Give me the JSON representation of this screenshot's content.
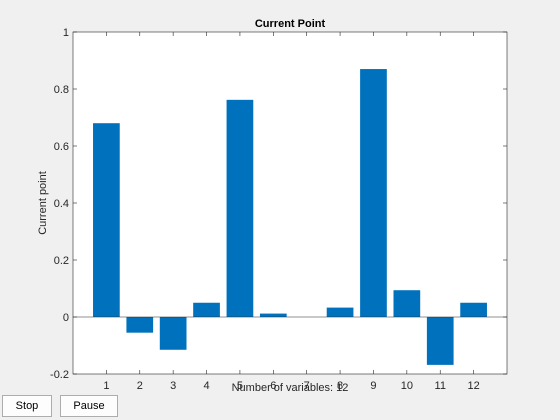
{
  "colors": {
    "bar": "#0072bd",
    "axes_bg": "#ffffff",
    "figure_bg": "#f0f0f0",
    "axis": "#262626"
  },
  "controls": {
    "stop_label": "Stop",
    "pause_label": "Pause"
  },
  "chart_data": {
    "type": "bar",
    "title": "Current Point",
    "xlabel": "Number of variables: 12",
    "ylabel": "Current point",
    "categories": [
      "1",
      "2",
      "3",
      "4",
      "5",
      "6",
      "7",
      "8",
      "9",
      "10",
      "11",
      "12"
    ],
    "values": [
      0.68,
      -0.055,
      -0.115,
      0.05,
      0.762,
      0.012,
      0.0,
      0.033,
      0.87,
      0.094,
      -0.168,
      0.05
    ],
    "ylim": [
      -0.2,
      1
    ],
    "yticks": [
      -0.2,
      0,
      0.2,
      0.4,
      0.6,
      0.8,
      1
    ],
    "ytick_labels": [
      "-0.2",
      "0",
      "0.2",
      "0.4",
      "0.6",
      "0.8",
      "1"
    ],
    "xlim": [
      0,
      13
    ],
    "grid": false
  }
}
